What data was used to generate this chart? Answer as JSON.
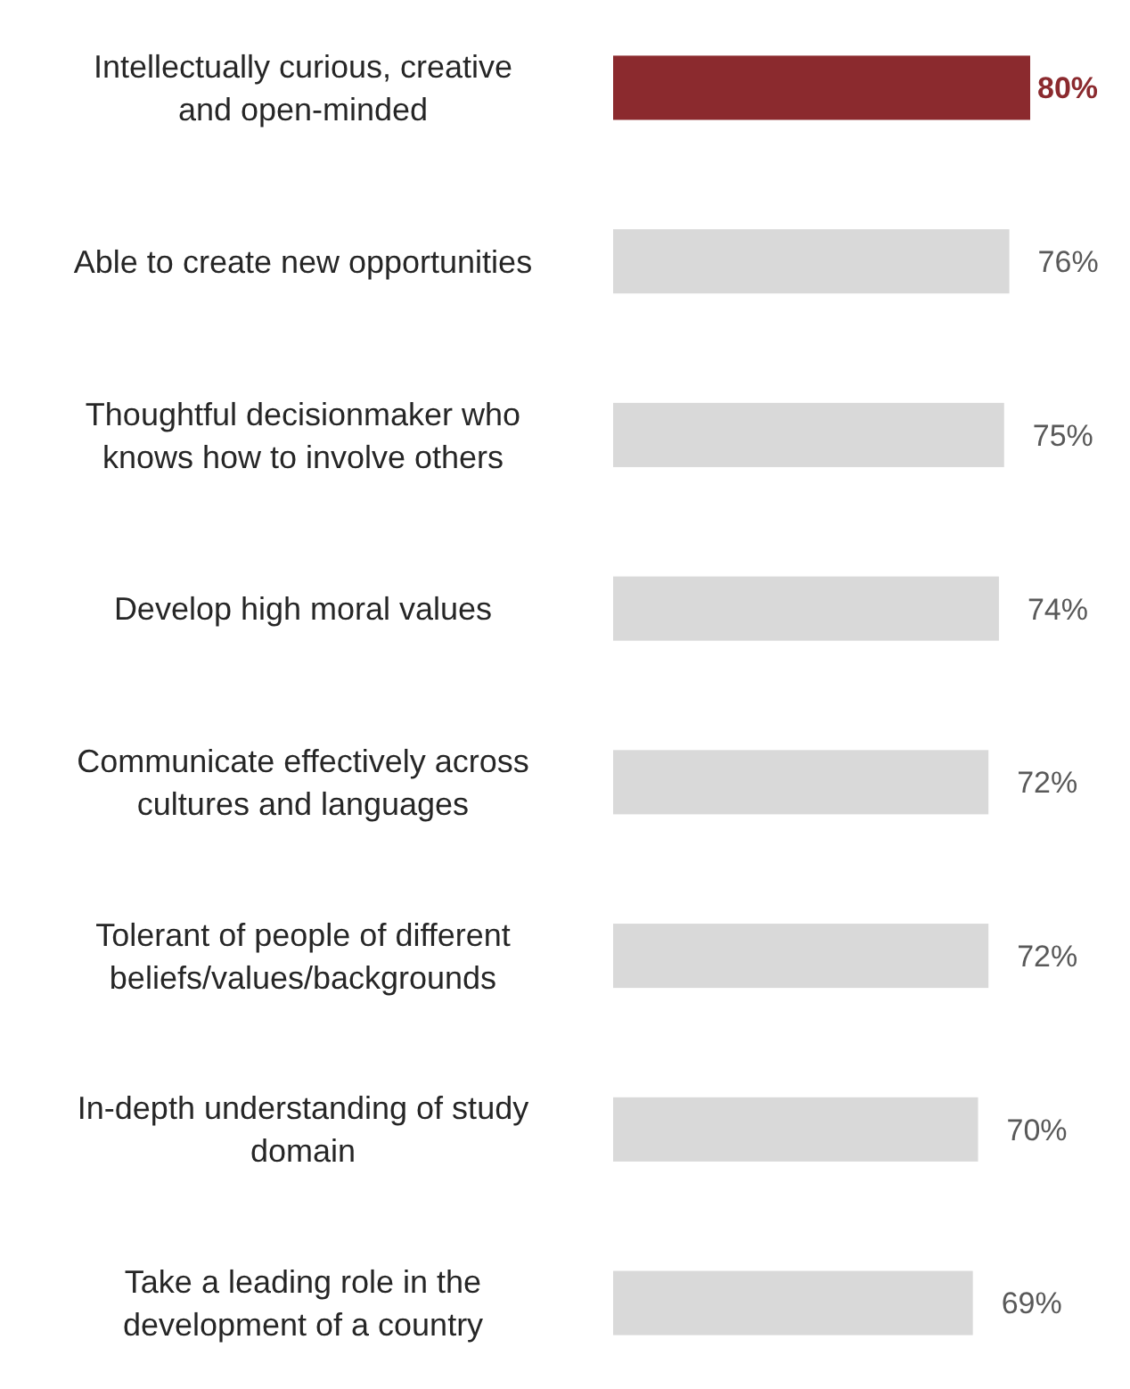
{
  "chart_data": {
    "type": "bar",
    "orientation": "horizontal",
    "categories": [
      "Intellectually curious, creative and open-minded",
      "Able to create new opportunities",
      "Thoughtful decisionmaker who knows how to involve others",
      "Develop high moral values",
      "Communicate effectively across cultures and languages",
      "Tolerant of people of different beliefs/values/backgrounds",
      "In-depth understanding of study domain",
      "Take a leading role in the development of a country"
    ],
    "values": [
      80,
      76,
      75,
      74,
      72,
      72,
      70,
      69
    ],
    "value_labels": [
      "80%",
      "76%",
      "75%",
      "74%",
      "72%",
      "72%",
      "70%",
      "69%"
    ],
    "colors": [
      "#8b2a2e",
      "#d9d9d9",
      "#d9d9d9",
      "#d9d9d9",
      "#d9d9d9",
      "#d9d9d9",
      "#d9d9d9",
      "#d9d9d9"
    ]
  }
}
